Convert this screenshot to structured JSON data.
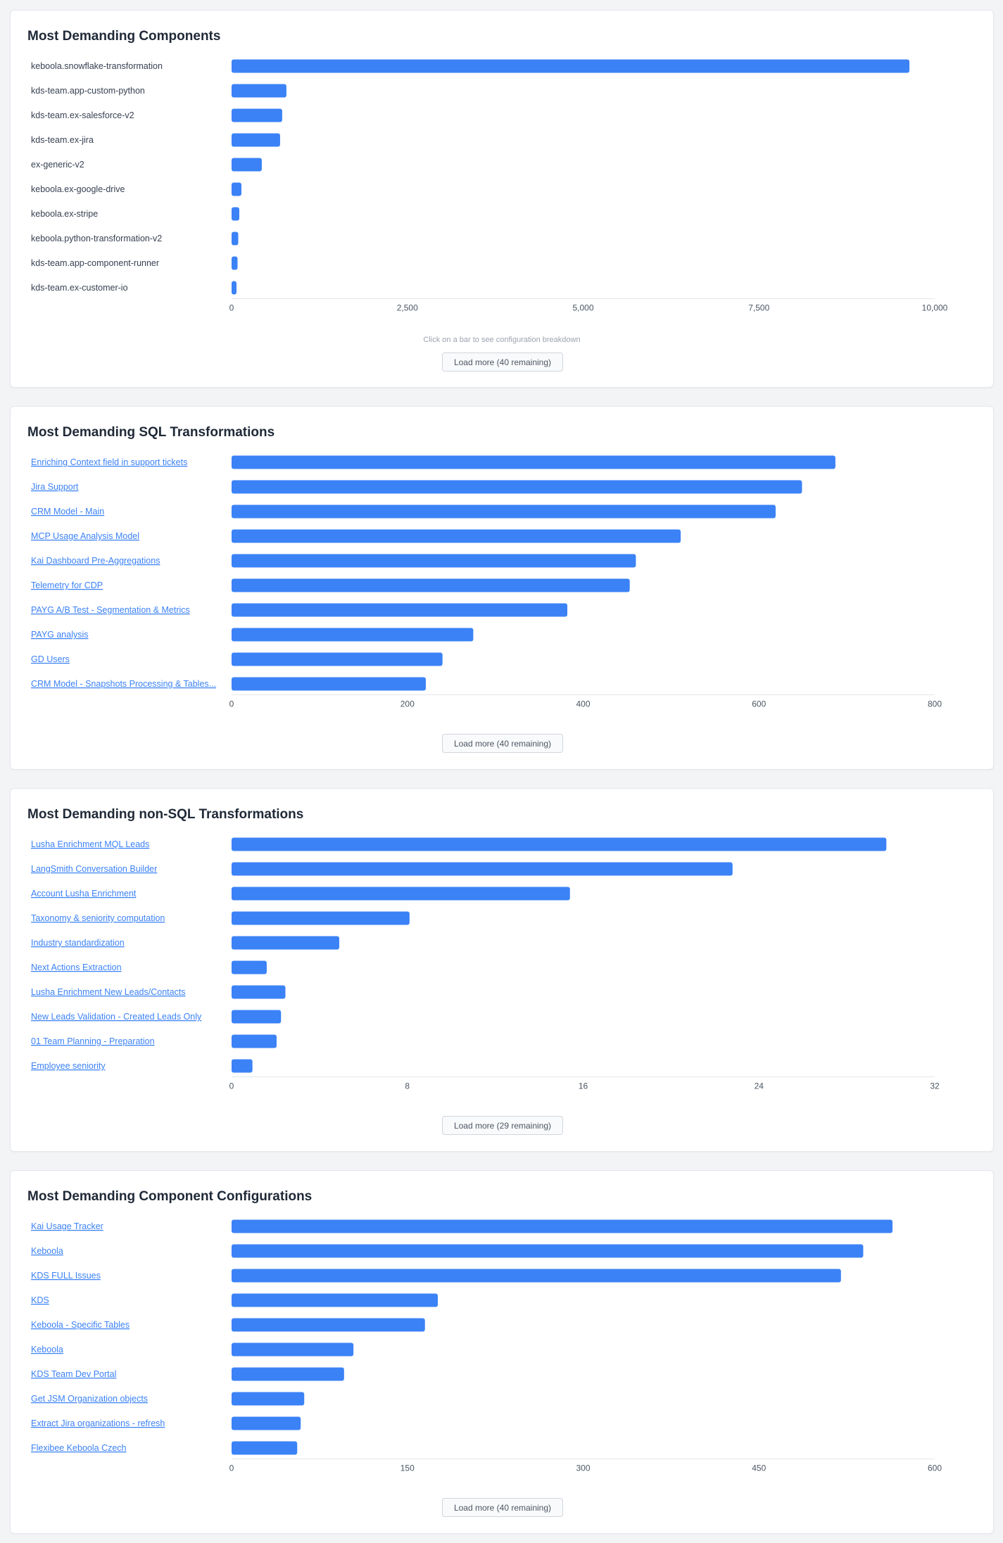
{
  "chart_data": [
    {
      "type": "bar",
      "orientation": "horizontal",
      "title": "Most Demanding Components",
      "label_style": "plain",
      "categories": [
        "keboola.snowflake-transformation",
        "kds-team.app-custom-python",
        "kds-team.ex-salesforce-v2",
        "kds-team.ex-jira",
        "ex-generic-v2",
        "keboola.ex-google-drive",
        "keboola.ex-stripe",
        "keboola.python-transformation-v2",
        "kds-team.app-component-runner",
        "kds-team.ex-customer-io"
      ],
      "values": [
        9640,
        780,
        720,
        690,
        430,
        140,
        110,
        95,
        85,
        70
      ],
      "xlim": [
        0,
        10000
      ],
      "ticks": [
        0,
        2500,
        5000,
        7500,
        10000
      ],
      "tick_labels": [
        "0",
        "2,500",
        "5,000",
        "7,500",
        "10,000"
      ],
      "hint": "Click on a bar to see configuration breakdown",
      "load_more": "Load more (40 remaining)",
      "color": "#3b82f6"
    },
    {
      "type": "bar",
      "orientation": "horizontal",
      "title": "Most Demanding SQL Transformations",
      "label_style": "link",
      "categories": [
        "Enriching Context field in support tickets",
        "Jira Support",
        "CRM Model - Main",
        "MCP Usage Analysis Model",
        "Kai Dashboard Pre-Aggregations",
        "Telemetry for CDP",
        "PAYG A/B Test - Segmentation & Metrics",
        "PAYG analysis",
        "GD Users",
        "CRM Model - Snapshots Processing & Tables..."
      ],
      "values": [
        687,
        649,
        619,
        511,
        460,
        453,
        382,
        275,
        240,
        221
      ],
      "xlim": [
        0,
        800
      ],
      "ticks": [
        0,
        200,
        400,
        600,
        800
      ],
      "tick_labels": [
        "0",
        "200",
        "400",
        "600",
        "800"
      ],
      "load_more": "Load more (40 remaining)",
      "color": "#3b82f6"
    },
    {
      "type": "bar",
      "orientation": "horizontal",
      "title": "Most Demanding non-SQL Transformations",
      "label_style": "link",
      "categories": [
        "Lusha Enrichment MQL Leads",
        "LangSmith Conversation Builder",
        "Account Lusha Enrichment",
        "Taxonomy & seniority computation",
        "Industry standardization",
        "Next Actions Extraction",
        "Lusha Enrichment New Leads/Contacts",
        "New Leads Validation - Created Leads Only",
        "01 Team Planning - Preparation",
        "Employee seniority"
      ],
      "values": [
        29.8,
        22.8,
        15.4,
        8.1,
        4.9,
        1.6,
        2.45,
        2.25,
        2.05,
        0.95
      ],
      "xlim": [
        0,
        32
      ],
      "ticks": [
        0,
        8,
        16,
        24,
        32
      ],
      "tick_labels": [
        "0",
        "8",
        "16",
        "24",
        "32"
      ],
      "load_more": "Load more (29 remaining)",
      "color": "#3b82f6"
    },
    {
      "type": "bar",
      "orientation": "horizontal",
      "title": "Most Demanding Component Configurations",
      "label_style": "link",
      "categories": [
        "Kai Usage Tracker",
        "Keboola",
        "KDS FULL Issues",
        "KDS",
        "Keboola - Specific Tables",
        "Keboola",
        "KDS Team Dev Portal",
        "Get JSM Organization objects",
        "Extract Jira organizations - refresh",
        "Flexibee Keboola Czech"
      ],
      "values": [
        564,
        539,
        520,
        176,
        165,
        104,
        96,
        62,
        59,
        56
      ],
      "xlim": [
        0,
        600
      ],
      "ticks": [
        0,
        150,
        300,
        450,
        600
      ],
      "tick_labels": [
        "0",
        "150",
        "300",
        "450",
        "600"
      ],
      "load_more": "Load more (40 remaining)",
      "color": "#3b82f6"
    }
  ]
}
